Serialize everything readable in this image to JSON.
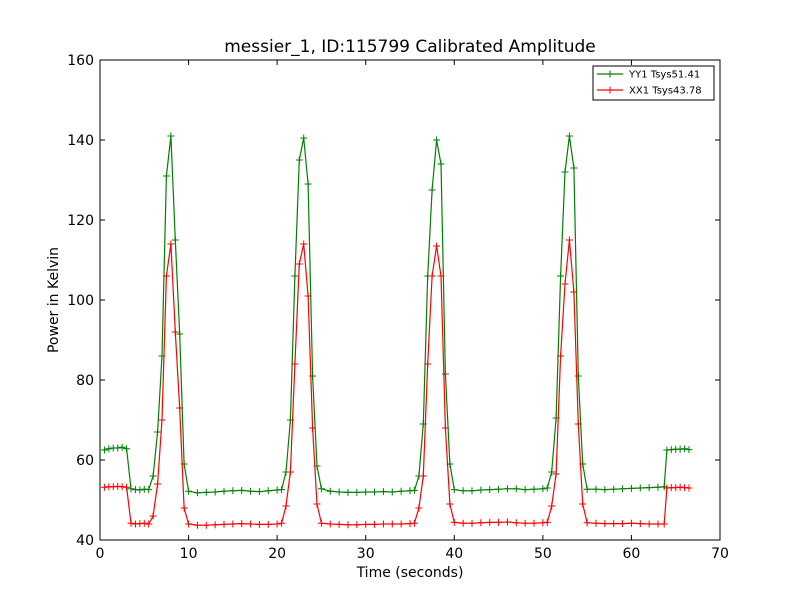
{
  "chart_data": {
    "type": "line",
    "title": "messier_1, ID:115799 Calibrated Amplitude",
    "xlabel": "Time (seconds)",
    "ylabel": "Power in Kelvin",
    "xlim": [
      0,
      70
    ],
    "ylim": [
      40,
      160
    ],
    "xticks": [
      0,
      10,
      20,
      30,
      40,
      50,
      60,
      70
    ],
    "yticks": [
      40,
      60,
      80,
      100,
      120,
      140,
      160
    ],
    "grid": false,
    "legend_position": "top-right",
    "series": [
      {
        "name": "YY1 Tsys51.41",
        "color": "#008000",
        "marker": "+",
        "x": [
          0.5,
          1.0,
          1.5,
          2.0,
          2.5,
          3.0,
          3.5,
          4.0,
          4.5,
          5.0,
          5.5,
          6.0,
          6.5,
          7.0,
          7.5,
          8.0,
          8.5,
          9.0,
          9.5,
          10.0,
          11.0,
          12.0,
          13.0,
          14.0,
          15.0,
          16.0,
          17.0,
          18.0,
          19.0,
          20.0,
          20.5,
          21.0,
          21.5,
          22.0,
          22.5,
          23.0,
          23.5,
          24.0,
          24.5,
          25.0,
          26.0,
          27.0,
          28.0,
          29.0,
          30.0,
          31.0,
          32.0,
          33.0,
          34.0,
          35.0,
          35.5,
          36.0,
          36.5,
          37.0,
          37.5,
          38.0,
          38.5,
          39.0,
          39.5,
          40.0,
          41.0,
          42.0,
          43.0,
          44.0,
          45.0,
          46.0,
          47.0,
          48.0,
          49.0,
          50.0,
          50.5,
          51.0,
          51.5,
          52.0,
          52.5,
          53.0,
          53.5,
          54.0,
          54.5,
          55.0,
          56.0,
          57.0,
          58.0,
          59.0,
          60.0,
          61.0,
          62.0,
          63.0,
          63.7,
          64.0,
          64.5,
          65.0,
          65.5,
          66.0,
          66.5
        ],
        "values": [
          62.5,
          62.8,
          63.0,
          63.0,
          63.2,
          62.8,
          52.8,
          52.6,
          52.5,
          52.7,
          52.6,
          56.0,
          67.0,
          86.0,
          131.0,
          141.0,
          115.0,
          91.5,
          59.0,
          52.2,
          51.8,
          51.9,
          52.0,
          52.2,
          52.3,
          52.4,
          52.2,
          52.1,
          52.3,
          52.5,
          52.6,
          57.0,
          70.0,
          106.0,
          135.0,
          140.5,
          129.0,
          81.0,
          58.5,
          52.8,
          52.2,
          52.0,
          51.9,
          51.9,
          52.0,
          52.0,
          52.1,
          52.0,
          52.2,
          52.3,
          52.4,
          56.0,
          69.0,
          106.0,
          127.5,
          140.0,
          134.0,
          81.5,
          59.0,
          52.6,
          52.3,
          52.3,
          52.5,
          52.6,
          52.7,
          52.8,
          52.8,
          52.6,
          52.7,
          52.8,
          53.0,
          57.0,
          70.5,
          106.0,
          132.0,
          141.0,
          133.0,
          81.0,
          59.0,
          52.7,
          52.7,
          52.6,
          52.7,
          52.8,
          52.9,
          53.0,
          53.1,
          53.2,
          53.3,
          62.5,
          62.6,
          62.7,
          62.7,
          62.8,
          62.6
        ]
      },
      {
        "name": "XX1 Tsys43.78",
        "color": "#ff0000",
        "marker": "+",
        "x": [
          0.5,
          1.0,
          1.5,
          2.0,
          2.5,
          3.0,
          3.5,
          4.0,
          4.5,
          5.0,
          5.5,
          6.0,
          6.5,
          7.0,
          7.5,
          8.0,
          8.5,
          9.0,
          9.5,
          10.0,
          11.0,
          12.0,
          13.0,
          14.0,
          15.0,
          16.0,
          17.0,
          18.0,
          19.0,
          20.0,
          20.5,
          21.0,
          21.5,
          22.0,
          22.5,
          23.0,
          23.5,
          24.0,
          24.5,
          25.0,
          26.0,
          27.0,
          28.0,
          29.0,
          30.0,
          31.0,
          32.0,
          33.0,
          34.0,
          35.0,
          35.5,
          36.0,
          36.5,
          37.0,
          37.5,
          38.0,
          38.5,
          39.0,
          39.5,
          40.0,
          41.0,
          42.0,
          43.0,
          44.0,
          45.0,
          46.0,
          47.0,
          48.0,
          49.0,
          50.0,
          50.5,
          51.0,
          51.5,
          52.0,
          52.5,
          53.0,
          53.5,
          54.0,
          54.5,
          55.0,
          56.0,
          57.0,
          58.0,
          59.0,
          60.0,
          61.0,
          62.0,
          63.0,
          63.7,
          64.0,
          64.5,
          65.0,
          65.5,
          66.0,
          66.5
        ],
        "values": [
          53.2,
          53.3,
          53.3,
          53.4,
          53.3,
          53.2,
          44.2,
          44.0,
          44.1,
          44.2,
          44.0,
          46.0,
          54.0,
          70.0,
          106.0,
          114.0,
          92.0,
          73.0,
          48.0,
          44.0,
          43.7,
          43.7,
          43.8,
          43.9,
          44.0,
          44.1,
          44.0,
          43.9,
          43.9,
          44.0,
          44.2,
          48.5,
          57.0,
          84.0,
          109.0,
          114.0,
          101.0,
          68.0,
          49.0,
          44.2,
          44.0,
          43.9,
          43.8,
          43.8,
          43.9,
          43.9,
          44.0,
          44.0,
          44.0,
          44.1,
          44.2,
          48.0,
          56.0,
          84.0,
          106.0,
          113.5,
          106.0,
          68.0,
          49.0,
          44.4,
          44.2,
          44.2,
          44.3,
          44.4,
          44.4,
          44.5,
          44.3,
          44.2,
          44.2,
          44.3,
          44.4,
          48.5,
          56.5,
          86.0,
          104.0,
          115.0,
          102.0,
          69.0,
          49.0,
          44.3,
          44.2,
          44.1,
          44.1,
          44.1,
          44.2,
          44.1,
          44.0,
          44.0,
          44.0,
          53.0,
          53.1,
          53.1,
          53.2,
          53.1,
          53.0
        ]
      }
    ]
  }
}
